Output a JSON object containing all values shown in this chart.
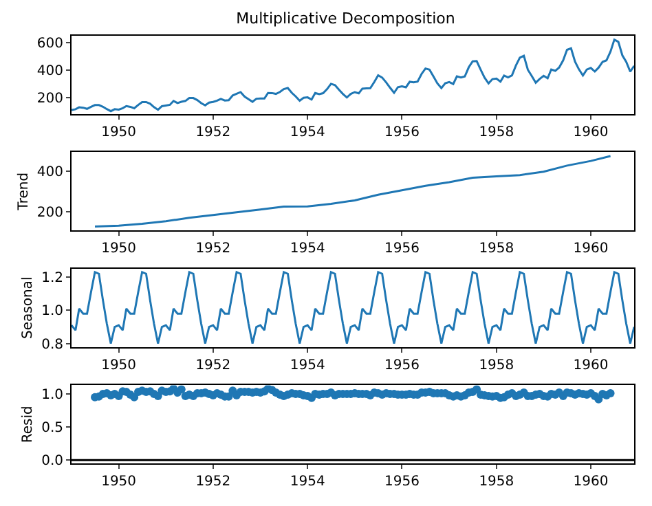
{
  "chart_data": [
    {
      "type": "line",
      "title": "Multiplicative Decomposition",
      "xlim": [
        "1949-01",
        "1960-12"
      ],
      "ylim": [
        85,
        650
      ],
      "yticks": [
        200,
        400,
        600
      ],
      "xticks": [
        {
          "value": "1950-01",
          "label": "1950"
        },
        {
          "value": "1952-01",
          "label": "1952"
        },
        {
          "value": "1954-01",
          "label": "1954"
        },
        {
          "value": "1956-01",
          "label": "1956"
        },
        {
          "value": "1958-01",
          "label": "1958"
        },
        {
          "value": "1960-01",
          "label": "1960"
        }
      ],
      "x": [
        "1949-01",
        "1949-02",
        "1949-03",
        "1949-04",
        "1949-05",
        "1949-06",
        "1949-07",
        "1949-08",
        "1949-09",
        "1949-10",
        "1949-11",
        "1949-12",
        "1950-01",
        "1950-02",
        "1950-03",
        "1950-04",
        "1950-05",
        "1950-06",
        "1950-07",
        "1950-08",
        "1950-09",
        "1950-10",
        "1950-11",
        "1950-12",
        "1951-01",
        "1951-02",
        "1951-03",
        "1951-04",
        "1951-05",
        "1951-06",
        "1951-07",
        "1951-08",
        "1951-09",
        "1951-10",
        "1951-11",
        "1951-12",
        "1952-01",
        "1952-02",
        "1952-03",
        "1952-04",
        "1952-05",
        "1952-06",
        "1952-07",
        "1952-08",
        "1952-09",
        "1952-10",
        "1952-11",
        "1952-12",
        "1953-01",
        "1953-02",
        "1953-03",
        "1953-04",
        "1953-05",
        "1953-06",
        "1953-07",
        "1953-08",
        "1953-09",
        "1953-10",
        "1953-11",
        "1953-12",
        "1954-01",
        "1954-02",
        "1954-03",
        "1954-04",
        "1954-05",
        "1954-06",
        "1954-07",
        "1954-08",
        "1954-09",
        "1954-10",
        "1954-11",
        "1954-12",
        "1955-01",
        "1955-02",
        "1955-03",
        "1955-04",
        "1955-05",
        "1955-06",
        "1955-07",
        "1955-08",
        "1955-09",
        "1955-10",
        "1955-11",
        "1955-12",
        "1956-01",
        "1956-02",
        "1956-03",
        "1956-04",
        "1956-05",
        "1956-06",
        "1956-07",
        "1956-08",
        "1956-09",
        "1956-10",
        "1956-11",
        "1956-12",
        "1957-01",
        "1957-02",
        "1957-03",
        "1957-04",
        "1957-05",
        "1957-06",
        "1957-07",
        "1957-08",
        "1957-09",
        "1957-10",
        "1957-11",
        "1957-12",
        "1958-01",
        "1958-02",
        "1958-03",
        "1958-04",
        "1958-05",
        "1958-06",
        "1958-07",
        "1958-08",
        "1958-09",
        "1958-10",
        "1958-11",
        "1958-12",
        "1959-01",
        "1959-02",
        "1959-03",
        "1959-04",
        "1959-05",
        "1959-06",
        "1959-07",
        "1959-08",
        "1959-09",
        "1959-10",
        "1959-11",
        "1959-12",
        "1960-01",
        "1960-02",
        "1960-03",
        "1960-04",
        "1960-05",
        "1960-06",
        "1960-07",
        "1960-08",
        "1960-09",
        "1960-10",
        "1960-11",
        "1960-12"
      ],
      "series": [
        {
          "color": "#1f77b4",
          "values": [
            112,
            118,
            132,
            129,
            121,
            135,
            148,
            148,
            136,
            119,
            104,
            118,
            115,
            126,
            141,
            135,
            125,
            149,
            170,
            170,
            158,
            133,
            114,
            140,
            145,
            150,
            178,
            163,
            172,
            178,
            199,
            199,
            184,
            162,
            146,
            166,
            171,
            180,
            193,
            181,
            183,
            218,
            230,
            242,
            209,
            191,
            172,
            194,
            196,
            196,
            236,
            235,
            229,
            243,
            264,
            272,
            237,
            211,
            180,
            201,
            204,
            188,
            235,
            227,
            234,
            264,
            302,
            293,
            259,
            229,
            203,
            229,
            242,
            233,
            267,
            269,
            270,
            315,
            364,
            347,
            312,
            274,
            237,
            278,
            284,
            277,
            317,
            313,
            318,
            374,
            413,
            405,
            355,
            306,
            271,
            306,
            315,
            301,
            356,
            348,
            355,
            422,
            465,
            467,
            404,
            347,
            305,
            336,
            340,
            318,
            362,
            348,
            363,
            435,
            491,
            505,
            404,
            359,
            310,
            337,
            360,
            342,
            406,
            396,
            420,
            472,
            548,
            559,
            463,
            407,
            362,
            405,
            417,
            391,
            419,
            461,
            472,
            535,
            622,
            606,
            508,
            461,
            390,
            432
          ]
        }
      ]
    },
    {
      "type": "line",
      "ylabel": "Trend",
      "xlim": [
        "1949-01",
        "1960-12"
      ],
      "ylim": [
        108,
        494
      ],
      "yticks": [
        200,
        400
      ],
      "xticks": [
        {
          "value": "1950-01",
          "label": "1950"
        },
        {
          "value": "1952-01",
          "label": "1952"
        },
        {
          "value": "1954-01",
          "label": "1954"
        },
        {
          "value": "1956-01",
          "label": "1956"
        },
        {
          "value": "1958-01",
          "label": "1958"
        },
        {
          "value": "1960-01",
          "label": "1960"
        }
      ],
      "x": [
        "1949-07",
        "1950-01",
        "1950-07",
        "1951-01",
        "1951-07",
        "1952-01",
        "1952-07",
        "1953-01",
        "1953-07",
        "1954-01",
        "1954-07",
        "1955-01",
        "1955-07",
        "1956-01",
        "1956-07",
        "1957-01",
        "1957-07",
        "1958-01",
        "1958-07",
        "1959-01",
        "1959-07",
        "1960-01",
        "1960-06"
      ],
      "series": [
        {
          "color": "#1f77b4",
          "values": [
            127,
            131,
            140,
            153,
            170,
            184,
            197,
            211,
            225,
            226,
            239,
            256,
            284,
            306,
            328,
            346,
            368,
            375,
            381,
            398,
            428,
            451,
            475
          ]
        }
      ]
    },
    {
      "type": "line",
      "ylabel": "Seasonal",
      "xlim": [
        "1949-01",
        "1960-12"
      ],
      "ylim": [
        0.78,
        1.25
      ],
      "yticks": [
        {
          "value": 0.8,
          "label": "0.8"
        },
        {
          "value": 1.0,
          "label": "1.0"
        },
        {
          "value": 1.2,
          "label": "1.2"
        }
      ],
      "xticks": [
        {
          "value": "1950-01",
          "label": "1950"
        },
        {
          "value": "1952-01",
          "label": "1952"
        },
        {
          "value": "1954-01",
          "label": "1954"
        },
        {
          "value": "1956-01",
          "label": "1956"
        },
        {
          "value": "1958-01",
          "label": "1958"
        },
        {
          "value": "1960-01",
          "label": "1960"
        }
      ],
      "x": [
        "1949-01",
        "1949-02",
        "1949-03",
        "1949-04",
        "1949-05",
        "1949-06",
        "1949-07",
        "1949-08",
        "1949-09",
        "1949-10",
        "1949-11",
        "1949-12",
        "1950-01",
        "1950-02",
        "1950-03",
        "1950-04",
        "1950-05",
        "1950-06",
        "1950-07",
        "1950-08",
        "1950-09",
        "1950-10",
        "1950-11",
        "1950-12",
        "1951-01",
        "1951-02",
        "1951-03",
        "1951-04",
        "1951-05",
        "1951-06",
        "1951-07",
        "1951-08",
        "1951-09",
        "1951-10",
        "1951-11",
        "1951-12",
        "1952-01",
        "1952-02",
        "1952-03",
        "1952-04",
        "1952-05",
        "1952-06",
        "1952-07",
        "1952-08",
        "1952-09",
        "1952-10",
        "1952-11",
        "1952-12",
        "1953-01",
        "1953-02",
        "1953-03",
        "1953-04",
        "1953-05",
        "1953-06",
        "1953-07",
        "1953-08",
        "1953-09",
        "1953-10",
        "1953-11",
        "1953-12",
        "1954-01",
        "1954-02",
        "1954-03",
        "1954-04",
        "1954-05",
        "1954-06",
        "1954-07",
        "1954-08",
        "1954-09",
        "1954-10",
        "1954-11",
        "1954-12",
        "1955-01",
        "1955-02",
        "1955-03",
        "1955-04",
        "1955-05",
        "1955-06",
        "1955-07",
        "1955-08",
        "1955-09",
        "1955-10",
        "1955-11",
        "1955-12",
        "1956-01",
        "1956-02",
        "1956-03",
        "1956-04",
        "1956-05",
        "1956-06",
        "1956-07",
        "1956-08",
        "1956-09",
        "1956-10",
        "1956-11",
        "1956-12",
        "1957-01",
        "1957-02",
        "1957-03",
        "1957-04",
        "1957-05",
        "1957-06",
        "1957-07",
        "1957-08",
        "1957-09",
        "1957-10",
        "1957-11",
        "1957-12",
        "1958-01",
        "1958-02",
        "1958-03",
        "1958-04",
        "1958-05",
        "1958-06",
        "1958-07",
        "1958-08",
        "1958-09",
        "1958-10",
        "1958-11",
        "1958-12",
        "1959-01",
        "1959-02",
        "1959-03",
        "1959-04",
        "1959-05",
        "1959-06",
        "1959-07",
        "1959-08",
        "1959-09",
        "1959-10",
        "1959-11",
        "1959-12",
        "1960-01",
        "1960-02",
        "1960-03",
        "1960-04",
        "1960-05",
        "1960-06",
        "1960-07",
        "1960-08",
        "1960-09",
        "1960-10",
        "1960-11",
        "1960-12"
      ],
      "series": [
        {
          "color": "#1f77b4",
          "values": [
            0.91,
            0.88,
            1.01,
            0.98,
            0.98,
            1.11,
            1.23,
            1.22,
            1.06,
            0.92,
            0.8,
            0.9,
            0.91,
            0.88,
            1.01,
            0.98,
            0.98,
            1.11,
            1.23,
            1.22,
            1.06,
            0.92,
            0.8,
            0.9,
            0.91,
            0.88,
            1.01,
            0.98,
            0.98,
            1.11,
            1.23,
            1.22,
            1.06,
            0.92,
            0.8,
            0.9,
            0.91,
            0.88,
            1.01,
            0.98,
            0.98,
            1.11,
            1.23,
            1.22,
            1.06,
            0.92,
            0.8,
            0.9,
            0.91,
            0.88,
            1.01,
            0.98,
            0.98,
            1.11,
            1.23,
            1.22,
            1.06,
            0.92,
            0.8,
            0.9,
            0.91,
            0.88,
            1.01,
            0.98,
            0.98,
            1.11,
            1.23,
            1.22,
            1.06,
            0.92,
            0.8,
            0.9,
            0.91,
            0.88,
            1.01,
            0.98,
            0.98,
            1.11,
            1.23,
            1.22,
            1.06,
            0.92,
            0.8,
            0.9,
            0.91,
            0.88,
            1.01,
            0.98,
            0.98,
            1.11,
            1.23,
            1.22,
            1.06,
            0.92,
            0.8,
            0.9,
            0.91,
            0.88,
            1.01,
            0.98,
            0.98,
            1.11,
            1.23,
            1.22,
            1.06,
            0.92,
            0.8,
            0.9,
            0.91,
            0.88,
            1.01,
            0.98,
            0.98,
            1.11,
            1.23,
            1.22,
            1.06,
            0.92,
            0.8,
            0.9,
            0.91,
            0.88,
            1.01,
            0.98,
            0.98,
            1.11,
            1.23,
            1.22,
            1.06,
            0.92,
            0.8,
            0.9,
            0.91,
            0.88,
            1.01,
            0.98,
            0.98,
            1.11,
            1.23,
            1.22,
            1.06,
            0.92,
            0.8,
            0.9
          ]
        }
      ]
    },
    {
      "type": "scatter",
      "ylabel": "Resid",
      "marker": "circle",
      "xlim": [
        "1949-01",
        "1960-12"
      ],
      "ylim": [
        -0.05,
        1.13
      ],
      "yticks": [
        {
          "value": 0,
          "label": "0.0"
        },
        {
          "value": 0.5,
          "label": "0.5"
        },
        {
          "value": 1.0,
          "label": "1.0"
        }
      ],
      "ref_lines": [
        {
          "axis": "y",
          "value": 0,
          "color": "#000000"
        }
      ],
      "xticks": [
        {
          "value": "1950-01",
          "label": "1950"
        },
        {
          "value": "1952-01",
          "label": "1952"
        },
        {
          "value": "1954-01",
          "label": "1954"
        },
        {
          "value": "1956-01",
          "label": "1956"
        },
        {
          "value": "1958-01",
          "label": "1958"
        },
        {
          "value": "1960-01",
          "label": "1960"
        }
      ],
      "x": [
        "1949-07",
        "1949-08",
        "1949-09",
        "1949-10",
        "1949-11",
        "1949-12",
        "1950-01",
        "1950-02",
        "1950-03",
        "1950-04",
        "1950-05",
        "1950-06",
        "1950-07",
        "1950-08",
        "1950-09",
        "1950-10",
        "1950-11",
        "1950-12",
        "1951-01",
        "1951-02",
        "1951-03",
        "1951-04",
        "1951-05",
        "1951-06",
        "1951-07",
        "1951-08",
        "1951-09",
        "1951-10",
        "1951-11",
        "1951-12",
        "1952-01",
        "1952-02",
        "1952-03",
        "1952-04",
        "1952-05",
        "1952-06",
        "1952-07",
        "1952-08",
        "1952-09",
        "1952-10",
        "1952-11",
        "1952-12",
        "1953-01",
        "1953-02",
        "1953-03",
        "1953-04",
        "1953-05",
        "1953-06",
        "1953-07",
        "1953-08",
        "1953-09",
        "1953-10",
        "1953-11",
        "1953-12",
        "1954-01",
        "1954-02",
        "1954-03",
        "1954-04",
        "1954-05",
        "1954-06",
        "1954-07",
        "1954-08",
        "1954-09",
        "1954-10",
        "1954-11",
        "1954-12",
        "1955-01",
        "1955-02",
        "1955-03",
        "1955-04",
        "1955-05",
        "1955-06",
        "1955-07",
        "1955-08",
        "1955-09",
        "1955-10",
        "1955-11",
        "1955-12",
        "1956-01",
        "1956-02",
        "1956-03",
        "1956-04",
        "1956-05",
        "1956-06",
        "1956-07",
        "1956-08",
        "1956-09",
        "1956-10",
        "1956-11",
        "1956-12",
        "1957-01",
        "1957-02",
        "1957-03",
        "1957-04",
        "1957-05",
        "1957-06",
        "1957-07",
        "1957-08",
        "1957-09",
        "1957-10",
        "1957-11",
        "1957-12",
        "1958-01",
        "1958-02",
        "1958-03",
        "1958-04",
        "1958-05",
        "1958-06",
        "1958-07",
        "1958-08",
        "1958-09",
        "1958-10",
        "1958-11",
        "1958-12",
        "1959-01",
        "1959-02",
        "1959-03",
        "1959-04",
        "1959-05",
        "1959-06",
        "1959-07",
        "1959-08",
        "1959-09",
        "1959-10",
        "1959-11",
        "1959-12",
        "1960-01",
        "1960-02",
        "1960-03",
        "1960-04",
        "1960-05",
        "1960-06"
      ],
      "series": [
        {
          "color": "#1f77b4",
          "values": [
            0.95,
            0.96,
            1.0,
            1.01,
            0.98,
            1.0,
            0.97,
            1.04,
            1.03,
            0.99,
            0.95,
            1.03,
            1.05,
            1.03,
            1.04,
            1.0,
            0.97,
            1.05,
            1.03,
            1.04,
            1.08,
            1.02,
            1.07,
            0.97,
            0.99,
            0.97,
            1.01,
            1.01,
            1.02,
            1.0,
            0.98,
            1.01,
            0.99,
            0.96,
            0.96,
            1.05,
            0.98,
            1.03,
            1.03,
            1.03,
            1.02,
            1.03,
            1.02,
            1.04,
            1.08,
            1.06,
            1.02,
            0.99,
            0.97,
            0.99,
            1.01,
            1.0,
            1.0,
            0.98,
            0.97,
            0.94,
            1.0,
            0.99,
            1.0,
            1.0,
            1.02,
            0.98,
            1.0,
            1.0,
            1.0,
            1.0,
            1.01,
            1.0,
            1.0,
            1.0,
            0.98,
            1.02,
            1.01,
            0.99,
            1.01,
            1.0,
            1.0,
            0.99,
            0.99,
            0.99,
            1.0,
            0.99,
            0.99,
            1.02,
            1.02,
            1.03,
            1.01,
            1.01,
            1.01,
            1.01,
            0.98,
            0.96,
            0.98,
            0.96,
            0.98,
            1.02,
            1.03,
            1.07,
            0.99,
            0.98,
            0.97,
            0.96,
            0.97,
            0.94,
            0.95,
            0.99,
            1.01,
            0.97,
            0.99,
            1.02,
            0.97,
            0.97,
            0.99,
            1.0,
            0.97,
            0.96,
            1.0,
            0.99,
            1.02,
            0.97,
            1.02,
            1.01,
            0.99,
            1.01,
            1.0,
            0.99,
            1.01,
            0.97,
            0.92,
            1.0,
            0.98,
            1.01
          ]
        }
      ]
    }
  ]
}
